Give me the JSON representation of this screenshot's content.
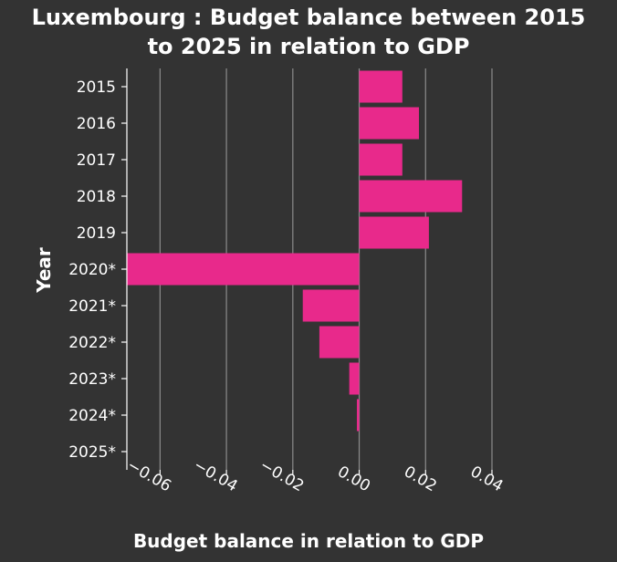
{
  "chart_data": {
    "type": "bar",
    "orientation": "horizontal",
    "title_lines": [
      "Luxembourg : Budget balance between 2015",
      "to 2025 in relation to GDP"
    ],
    "xlabel": "Budget balance in relation to GDP",
    "ylabel": "Year",
    "categories": [
      "2015",
      "2016",
      "2017",
      "2018",
      "2019",
      "2020*",
      "2021*",
      "2022*",
      "2023*",
      "2024*",
      "2025*"
    ],
    "values": [
      0.013,
      0.018,
      0.013,
      0.031,
      0.021,
      -0.07,
      -0.017,
      -0.012,
      -0.003,
      -0.0007,
      0
    ],
    "xlim": [
      -0.07,
      0.04
    ],
    "xticks": [
      -0.06,
      -0.04,
      -0.02,
      0.0,
      0.02,
      0.04
    ],
    "xtick_labels": [
      "−0.06",
      "−0.04",
      "−0.02",
      "0.00",
      "0.02",
      "0.04"
    ],
    "grid": "vertical",
    "colors": {
      "background": "#333333",
      "bar": "#e8298b",
      "grid": "#8c8c8c",
      "text": "#ffffff"
    }
  }
}
